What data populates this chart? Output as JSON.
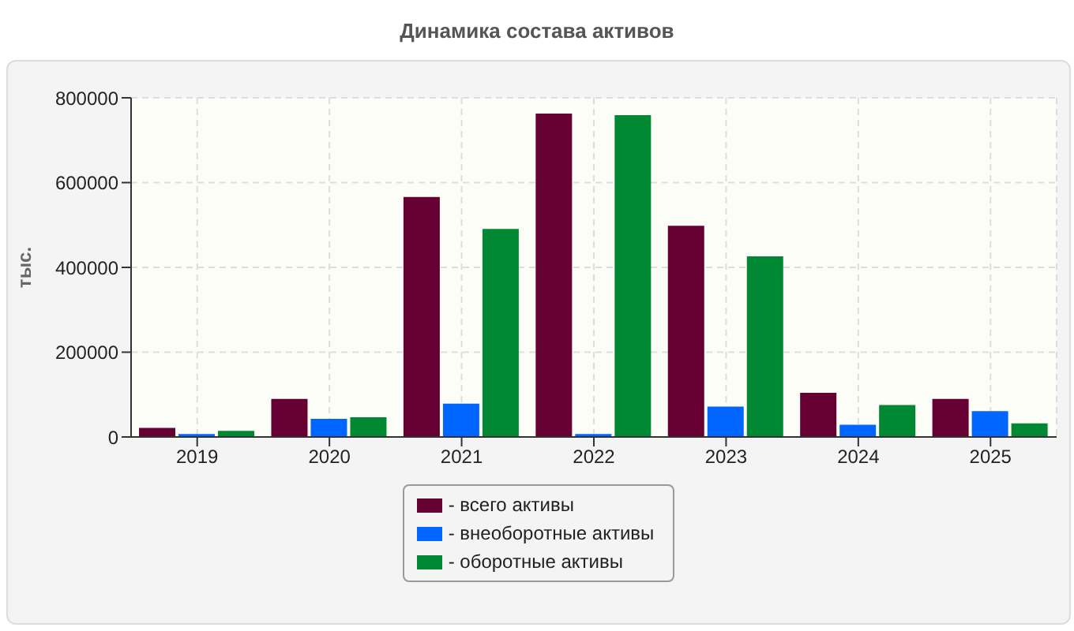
{
  "chart_data": {
    "type": "bar",
    "title": "Динамика состава активов",
    "ylabel": "тыс.",
    "categories": [
      "2019",
      "2020",
      "2021",
      "2022",
      "2023",
      "2024",
      "2025"
    ],
    "series": [
      {
        "name": "- всего активы",
        "color": "#660033",
        "values": [
          21500,
          89600,
          566000,
          763000,
          498000,
          104000,
          89600
        ]
      },
      {
        "name": "- внеоборотные активы",
        "color": "#0066ff",
        "values": [
          7000,
          43000,
          78800,
          7000,
          71600,
          28700,
          61000
        ]
      },
      {
        "name": "- оборотные активы",
        "color": "#008833",
        "values": [
          14300,
          46600,
          490700,
          759000,
          426000,
          75200,
          32000
        ]
      }
    ],
    "ylim": [
      0,
      800000
    ],
    "yticks": [
      0,
      200000,
      400000,
      600000,
      800000
    ],
    "grid": true,
    "legend": "bottom"
  }
}
